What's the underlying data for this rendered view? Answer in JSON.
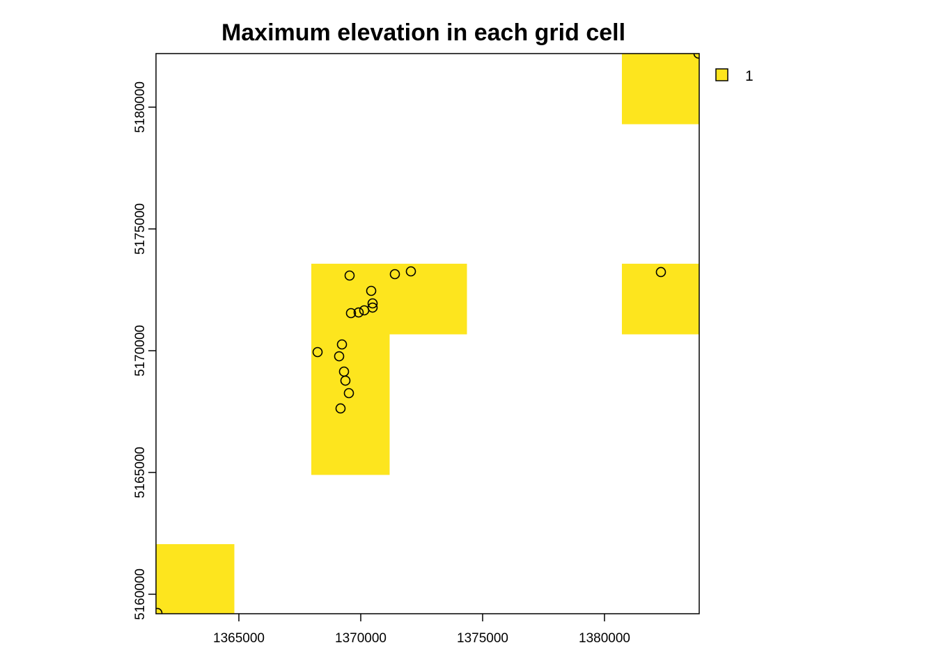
{
  "chart_data": {
    "type": "heatmap",
    "title": "Maximum elevation in each grid cell",
    "xlabel": "",
    "ylabel": "",
    "xlim": [
      1361600,
      1383886
    ],
    "ylim": [
      5159200,
      5182200
    ],
    "x_ticks": [
      1365000,
      1370000,
      1375000,
      1380000
    ],
    "x_tick_labels": [
      "1365000",
      "1370000",
      "1375000",
      "1380000"
    ],
    "y_ticks": [
      5160000,
      5165000,
      5170000,
      5175000,
      5180000
    ],
    "y_tick_labels": [
      "5160000",
      "5165000",
      "5170000",
      "5175000",
      "5180000"
    ],
    "grid": false,
    "fill_color": "#FDE51E",
    "cells": [
      {
        "x0": 1361600,
        "x1": 1364800,
        "y0": 5159200,
        "y1": 5162057,
        "value": 1
      },
      {
        "x0": 1367971,
        "x1": 1371171,
        "y0": 5164914,
        "y1": 5170686,
        "value": 1
      },
      {
        "x0": 1367971,
        "x1": 1374343,
        "y0": 5170686,
        "y1": 5173571,
        "value": 1
      },
      {
        "x0": 1380714,
        "x1": 1383886,
        "y0": 5170686,
        "y1": 5173571,
        "value": 1
      },
      {
        "x0": 1380714,
        "x1": 1383886,
        "y0": 5179314,
        "y1": 5182200,
        "value": 1
      }
    ],
    "points": [
      {
        "x": 1369543,
        "y": 5173086
      },
      {
        "x": 1371400,
        "y": 5173143
      },
      {
        "x": 1372057,
        "y": 5173257
      },
      {
        "x": 1370429,
        "y": 5172457
      },
      {
        "x": 1370486,
        "y": 5171943
      },
      {
        "x": 1370486,
        "y": 5171771
      },
      {
        "x": 1369600,
        "y": 5171543
      },
      {
        "x": 1369914,
        "y": 5171571
      },
      {
        "x": 1370143,
        "y": 5171657
      },
      {
        "x": 1369229,
        "y": 5170257
      },
      {
        "x": 1368229,
        "y": 5169943
      },
      {
        "x": 1369114,
        "y": 5169771
      },
      {
        "x": 1369314,
        "y": 5169143
      },
      {
        "x": 1369371,
        "y": 5168771
      },
      {
        "x": 1369514,
        "y": 5168257
      },
      {
        "x": 1369171,
        "y": 5167629
      },
      {
        "x": 1382314,
        "y": 5173229
      },
      {
        "x": 1383857,
        "y": 5182200
      },
      {
        "x": 1361657,
        "y": 5159229
      }
    ],
    "legend": {
      "placement": "top-right",
      "entries": [
        {
          "label": "1",
          "color": "#FDE51E"
        }
      ]
    }
  }
}
